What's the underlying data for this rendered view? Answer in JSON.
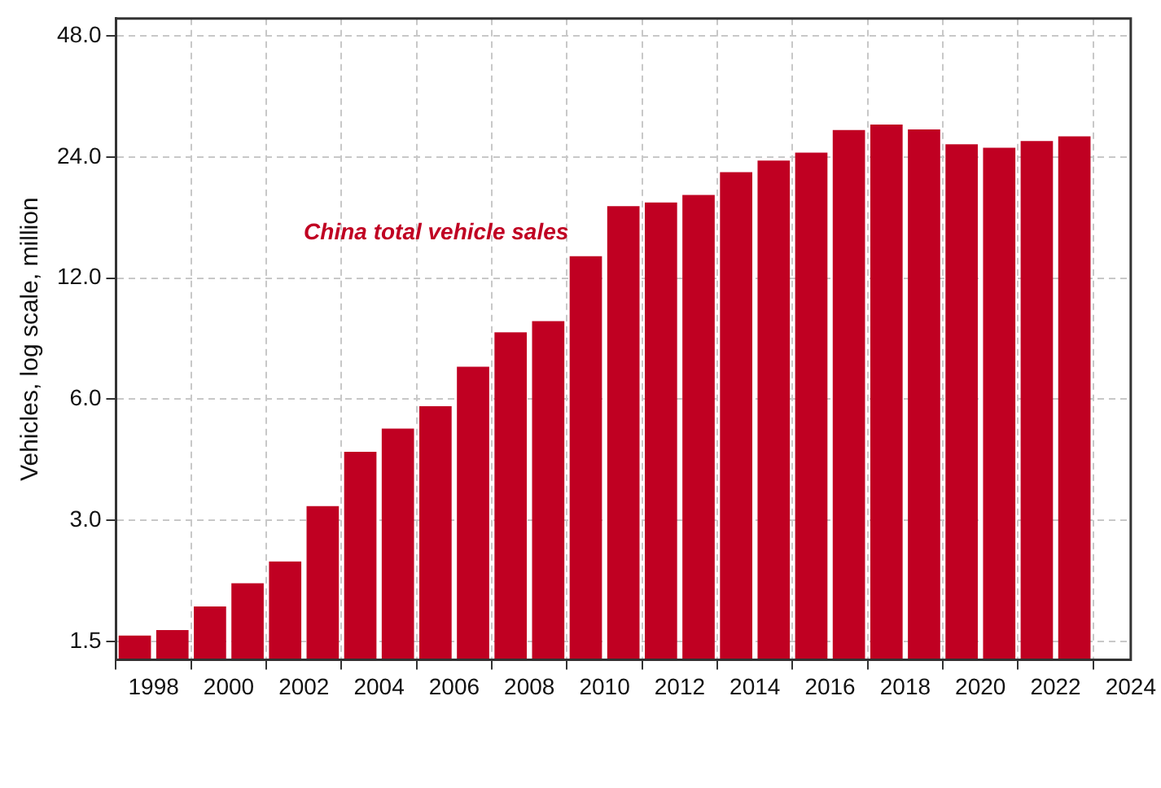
{
  "chart_data": {
    "type": "bar",
    "ylabel": "Vehicles, log scale, million",
    "log": true,
    "grid": true,
    "legend": false,
    "x": [
      1997.5,
      1998.5,
      1999.5,
      2000.5,
      2001.5,
      2002.5,
      2003.5,
      2004.5,
      2005.5,
      2006.5,
      2007.5,
      2008.5,
      2009.5,
      2010.5,
      2011.5,
      2012.5,
      2013.5,
      2014.5,
      2015.5,
      2016.5,
      2017.5,
      2018.5,
      2019.5,
      2020.5,
      2021.5,
      2022.5
    ],
    "series": [
      {
        "name": "China total vehicle sales",
        "color": "#c00022",
        "values": [
          1.55,
          1.6,
          1.83,
          2.09,
          2.37,
          3.25,
          4.44,
          5.07,
          5.76,
          7.22,
          8.79,
          9.38,
          13.6,
          18.1,
          18.5,
          19.3,
          22.0,
          23.5,
          24.6,
          28.0,
          28.9,
          28.1,
          25.8,
          25.3,
          26.3,
          27.0
        ]
      }
    ],
    "xlim": [
      1997,
      2024
    ],
    "xticks": [
      1998,
      2000,
      2002,
      2004,
      2006,
      2008,
      2010,
      2012,
      2014,
      2016,
      2018,
      2020,
      2022,
      2024
    ],
    "ylim": [
      1.35,
      53
    ],
    "yticks": [
      1.5,
      {
        "value": 3,
        "label": "3.0"
      },
      {
        "value": 6,
        "label": "6.0"
      },
      {
        "value": 12,
        "label": "12.0"
      },
      {
        "value": 24,
        "label": "24.0"
      },
      {
        "value": 48,
        "label": "48.0"
      }
    ]
  }
}
